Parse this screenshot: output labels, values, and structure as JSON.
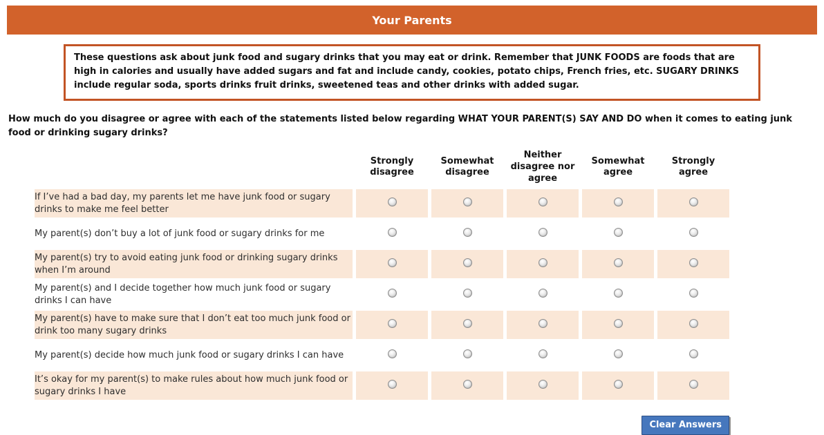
{
  "header": {
    "title": "Your Parents"
  },
  "instructions": {
    "text": "These questions ask about junk food and sugary drinks that you may eat or drink. Remember that JUNK FOODS are foods that are high in calories and usually have added sugars and fat and include candy, cookies, potato chips, French fries, etc. SUGARY DRINKS include regular soda, sports drinks fruit drinks, sweetened teas and other drinks with added sugar."
  },
  "question": {
    "text": "How much do you disagree or agree with each of the statements listed below regarding WHAT YOUR PARENT(S) SAY AND DO when it comes to eating junk food or drinking sugary drinks?"
  },
  "likert_table": {
    "columns": [
      "Strongly disagree",
      "Somewhat disagree",
      "Neither disagree nor agree",
      "Somewhat agree",
      "Strongly agree"
    ],
    "rows": [
      {
        "statement": "If I’ve had a bad day, my parents let me have junk food or sugary drinks to make me feel better",
        "shaded": true,
        "selected": null
      },
      {
        "statement": "My parent(s) don’t buy a lot of junk food or sugary drinks for me",
        "shaded": false,
        "selected": null
      },
      {
        "statement": "My parent(s) try to avoid eating junk food or drinking sugary drinks when I’m around",
        "shaded": true,
        "selected": null
      },
      {
        "statement": "My parent(s) and I decide together how much junk food or sugary drinks I can have",
        "shaded": false,
        "selected": null
      },
      {
        "statement": "My parent(s) have to make sure that I don’t eat too much junk food or drink too many sugary drinks",
        "shaded": true,
        "selected": null
      },
      {
        "statement": "My parent(s) decide how much junk food or sugary drinks I can have",
        "shaded": false,
        "selected": null
      },
      {
        "statement": "It’s okay for my parent(s) to make rules about how much junk food or sugary drinks I have",
        "shaded": true,
        "selected": null
      }
    ]
  },
  "actions": {
    "clear_button": "Clear Answers"
  },
  "colors": {
    "header_bg": "#D2622B",
    "box_border": "#C25425",
    "row_shade": "#FAE7D7",
    "button_bg": "#4677BD",
    "button_text": "#FFFFFF",
    "title_text": "#FFFFFF"
  }
}
